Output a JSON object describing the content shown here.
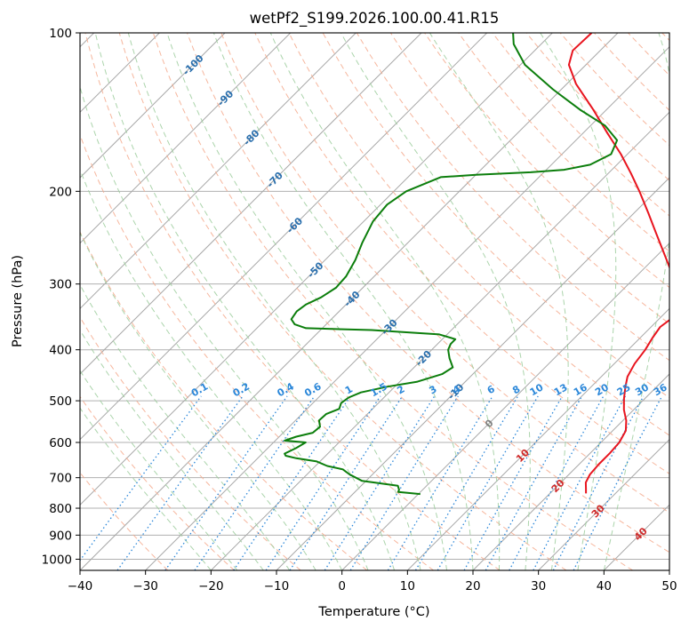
{
  "chart_data": {
    "type": "line",
    "diagram": "skew-T log-p",
    "title": "wetPf2_S199.2026.100.00.41.R15",
    "xlabel": "Temperature (°C)",
    "ylabel": "Pressure (hPa)",
    "xlim": [
      -40,
      50
    ],
    "ylim_hPa": [
      1050,
      100
    ],
    "xticks": [
      -40,
      -30,
      -20,
      -10,
      0,
      10,
      20,
      30,
      40,
      50
    ],
    "xtick_labels": [
      "−40",
      "−30",
      "−20",
      "−10",
      "0",
      "10",
      "20",
      "30",
      "40",
      "50"
    ],
    "yticks": [
      100,
      200,
      300,
      400,
      500,
      600,
      700,
      800,
      900,
      1000
    ],
    "ytick_labels": [
      "100",
      "200",
      "300",
      "400",
      "500",
      "600",
      "700",
      "800",
      "900",
      "1000"
    ],
    "grid": true,
    "colors": {
      "temperature": "#e8141e",
      "dewpoint": "#0c7e0c",
      "isotherm": "#a8a8a8",
      "dry_adiabat": "#f4a98c",
      "moist_adiabat": "#9ccd9c",
      "mixing_ratio": "#2b87d9",
      "isotherm_label": "#2a6fad",
      "adiabat_label": "#cf2a2a",
      "ice_curve": "#d9bfa0"
    },
    "series": [
      {
        "name": "Temperature",
        "color": "#e8141e",
        "points": [
          {
            "p": 750,
            "t": 25.5
          },
          {
            "p": 735,
            "t": 24.8
          },
          {
            "p": 715,
            "t": 23.8
          },
          {
            "p": 690,
            "t": 23.2
          },
          {
            "p": 660,
            "t": 23.0
          },
          {
            "p": 630,
            "t": 23.0
          },
          {
            "p": 600,
            "t": 22.8
          },
          {
            "p": 570,
            "t": 22.0
          },
          {
            "p": 545,
            "t": 20.5
          },
          {
            "p": 520,
            "t": 18.5
          },
          {
            "p": 495,
            "t": 16.8
          },
          {
            "p": 470,
            "t": 15.2
          },
          {
            "p": 450,
            "t": 14.0
          },
          {
            "p": 425,
            "t": 13.1
          },
          {
            "p": 400,
            "t": 12.6
          },
          {
            "p": 380,
            "t": 11.9
          },
          {
            "p": 362,
            "t": 11.4
          },
          {
            "p": 350,
            "t": 11.8
          },
          {
            "p": 335,
            "t": 11.4
          },
          {
            "p": 320,
            "t": 9.7
          },
          {
            "p": 300,
            "t": 7.0
          },
          {
            "p": 280,
            "t": 3.9
          },
          {
            "p": 260,
            "t": 0.3
          },
          {
            "p": 240,
            "t": -3.6
          },
          {
            "p": 220,
            "t": -7.8
          },
          {
            "p": 200,
            "t": -12.5
          },
          {
            "p": 185,
            "t": -16.5
          },
          {
            "p": 170,
            "t": -21.0
          },
          {
            "p": 155,
            "t": -26.3
          },
          {
            "p": 140,
            "t": -32.0
          },
          {
            "p": 125,
            "t": -38.6
          },
          {
            "p": 115,
            "t": -42.6
          },
          {
            "p": 108,
            "t": -44.2
          },
          {
            "p": 100,
            "t": -44.0
          }
        ]
      },
      {
        "name": "Dewpoint",
        "color": "#0c7e0c",
        "points": [
          {
            "p": 752,
            "t": 0.3
          },
          {
            "p": 745,
            "t": -3.4
          },
          {
            "p": 738,
            "t": -3.6
          },
          {
            "p": 725,
            "t": -4.4
          },
          {
            "p": 710,
            "t": -10.6
          },
          {
            "p": 690,
            "t": -13.5
          },
          {
            "p": 675,
            "t": -15.3
          },
          {
            "p": 665,
            "t": -18.2
          },
          {
            "p": 652,
            "t": -20.5
          },
          {
            "p": 643,
            "t": -24.1
          },
          {
            "p": 636,
            "t": -26.1
          },
          {
            "p": 630,
            "t": -26.6
          },
          {
            "p": 615,
            "t": -25.7
          },
          {
            "p": 600,
            "t": -25.1
          },
          {
            "p": 595,
            "t": -28.6
          },
          {
            "p": 585,
            "t": -27.4
          },
          {
            "p": 575,
            "t": -25.5
          },
          {
            "p": 560,
            "t": -25.3
          },
          {
            "p": 545,
            "t": -26.4
          },
          {
            "p": 530,
            "t": -26.3
          },
          {
            "p": 518,
            "t": -25.1
          },
          {
            "p": 505,
            "t": -25.7
          },
          {
            "p": 493,
            "t": -25.4
          },
          {
            "p": 482,
            "t": -24.3
          },
          {
            "p": 470,
            "t": -21.1
          },
          {
            "p": 460,
            "t": -17.3
          },
          {
            "p": 445,
            "t": -14.7
          },
          {
            "p": 432,
            "t": -14.1
          },
          {
            "p": 415,
            "t": -16.0
          },
          {
            "p": 400,
            "t": -17.5
          },
          {
            "p": 390,
            "t": -18.0
          },
          {
            "p": 382,
            "t": -18.0
          },
          {
            "p": 374,
            "t": -21.2
          },
          {
            "p": 367,
            "t": -32.2
          },
          {
            "p": 364,
            "t": -42.5
          },
          {
            "p": 358,
            "t": -44.8
          },
          {
            "p": 350,
            "t": -46.1
          },
          {
            "p": 338,
            "t": -46.5
          },
          {
            "p": 328,
            "t": -46.1
          },
          {
            "p": 318,
            "t": -44.9
          },
          {
            "p": 305,
            "t": -44.1
          },
          {
            "p": 290,
            "t": -44.3
          },
          {
            "p": 270,
            "t": -45.4
          },
          {
            "p": 250,
            "t": -47.0
          },
          {
            "p": 228,
            "t": -48.6
          },
          {
            "p": 212,
            "t": -49.0
          },
          {
            "p": 200,
            "t": -48.1
          },
          {
            "p": 188,
            "t": -45.0
          },
          {
            "p": 187,
            "t": -42.5
          },
          {
            "p": 186,
            "t": -40.0
          },
          {
            "p": 184,
            "t": -32.0
          },
          {
            "p": 182,
            "t": -27.3
          },
          {
            "p": 178,
            "t": -24.1
          },
          {
            "p": 170,
            "t": -22.5
          },
          {
            "p": 160,
            "t": -23.7
          },
          {
            "p": 150,
            "t": -27.8
          },
          {
            "p": 140,
            "t": -34.0
          },
          {
            "p": 128,
            "t": -41.3
          },
          {
            "p": 115,
            "t": -49.3
          },
          {
            "p": 105,
            "t": -54.2
          },
          {
            "p": 100,
            "t": -56.0
          }
        ]
      }
    ],
    "isotherm_labels": [
      {
        "t": -100,
        "p": 115,
        "text": "-100"
      },
      {
        "t": -90,
        "p": 133,
        "text": "-90"
      },
      {
        "t": -80,
        "p": 158,
        "text": "-80"
      },
      {
        "t": -70,
        "p": 190,
        "text": "-70"
      },
      {
        "t": -60,
        "p": 232,
        "text": "-60"
      },
      {
        "t": -50,
        "p": 282,
        "text": "-50"
      },
      {
        "t": -40,
        "p": 320,
        "text": "-40"
      },
      {
        "t": -30,
        "p": 362,
        "text": "-30"
      },
      {
        "t": -20,
        "p": 415,
        "text": "-20"
      },
      {
        "t": -10,
        "p": 480,
        "text": "-10"
      },
      {
        "t": 0,
        "p": 552,
        "text": "0"
      },
      {
        "t": 10,
        "p": 635,
        "text": "10"
      },
      {
        "t": 20,
        "p": 725,
        "text": "20"
      },
      {
        "t": 30,
        "p": 810,
        "text": "30"
      },
      {
        "t": 40,
        "p": 895,
        "text": "40"
      }
    ],
    "mixing_ratio_labels": [
      "0.1",
      "0.2",
      "0.4",
      "0.6",
      "1",
      "1.5",
      "2",
      "3",
      "4",
      "6",
      "8",
      "10",
      "13",
      "16",
      "20",
      "25",
      "30",
      "36"
    ],
    "mixing_ratio_label_pressure": 490
  }
}
